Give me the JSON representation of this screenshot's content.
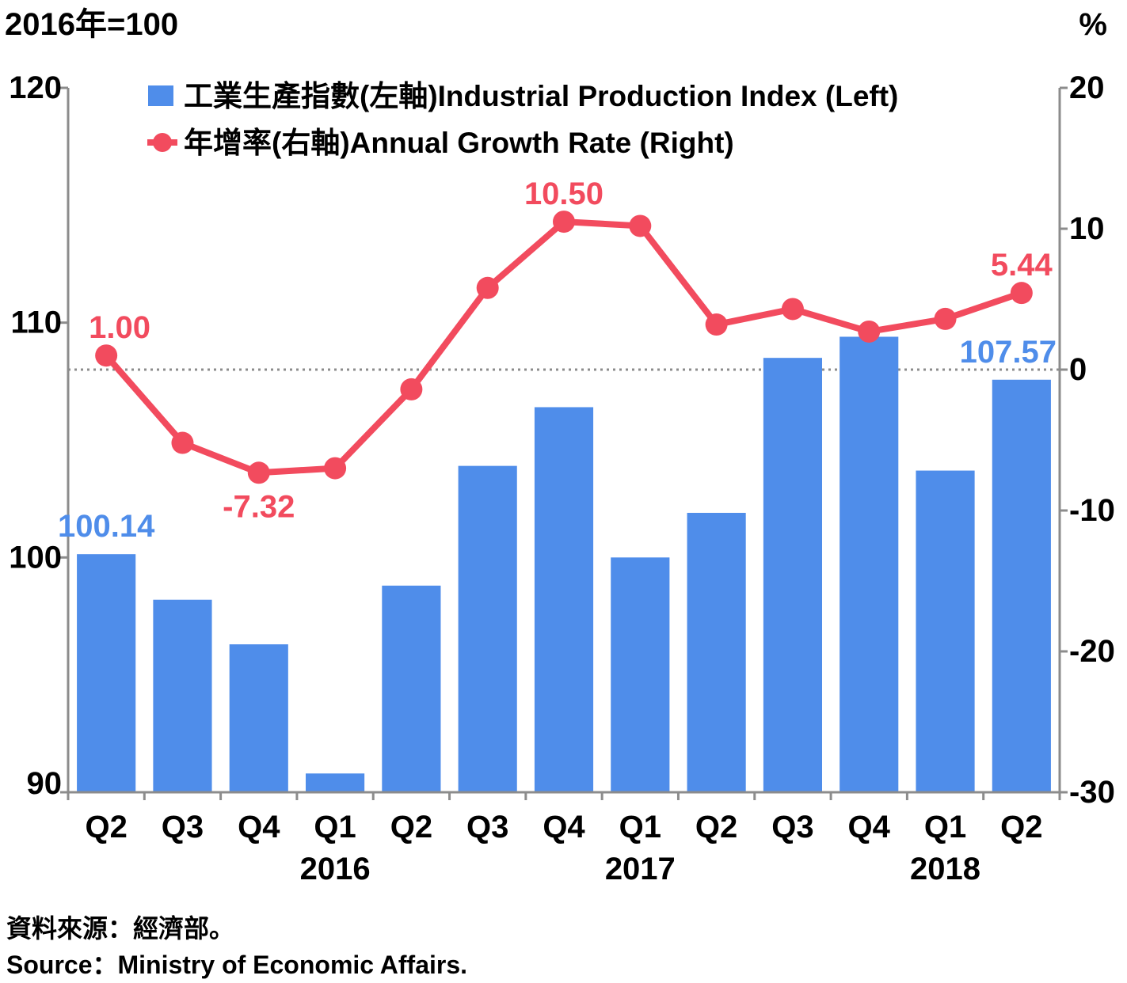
{
  "chart_data": {
    "type": "bar",
    "left_axis_unit": "2016年=100",
    "right_axis_unit": "%",
    "categories": [
      "Q2",
      "Q3",
      "Q4",
      "Q1",
      "Q2",
      "Q3",
      "Q4",
      "Q1",
      "Q2",
      "Q3",
      "Q4",
      "Q1",
      "Q2"
    ],
    "years": [
      {
        "label": "2016",
        "center_index": 3
      },
      {
        "label": "2017",
        "center_index": 7
      },
      {
        "label": "2018",
        "center_index": 11
      }
    ],
    "left_ylim": [
      90,
      120
    ],
    "left_ticks": [
      90,
      100,
      110,
      120
    ],
    "right_ylim": [
      -30,
      20
    ],
    "right_ticks": [
      -30,
      -20,
      -10,
      0,
      10,
      20
    ],
    "zero_reference_line": "dotted",
    "legend_position": "top",
    "series": [
      {
        "name": "工業生產指數(左軸)Industrial Production Index (Left)",
        "type": "bar",
        "axis": "left",
        "color": "#4f8dea",
        "values": [
          100.14,
          98.2,
          96.3,
          90.8,
          98.8,
          103.9,
          106.4,
          100.0,
          101.9,
          108.5,
          109.4,
          103.7,
          107.57
        ],
        "data_labels": [
          {
            "index": 0,
            "text": "100.14"
          },
          {
            "index": 12,
            "text": "107.57"
          }
        ]
      },
      {
        "name": "年增率(右軸)Annual Growth Rate (Right)",
        "type": "line",
        "axis": "right",
        "color": "#f24b5e",
        "values": [
          1.0,
          -5.2,
          -7.32,
          -7.0,
          -1.4,
          5.8,
          10.5,
          10.2,
          3.2,
          4.3,
          2.7,
          3.6,
          5.44
        ],
        "data_labels": [
          {
            "index": 0,
            "text": "1.00"
          },
          {
            "index": 2,
            "text": "-7.32"
          },
          {
            "index": 6,
            "text": "10.50"
          },
          {
            "index": 12,
            "text": "5.44"
          }
        ]
      }
    ]
  },
  "source": {
    "zh": "資料來源：經濟部。",
    "en": "Source：Ministry of Economic Affairs."
  }
}
